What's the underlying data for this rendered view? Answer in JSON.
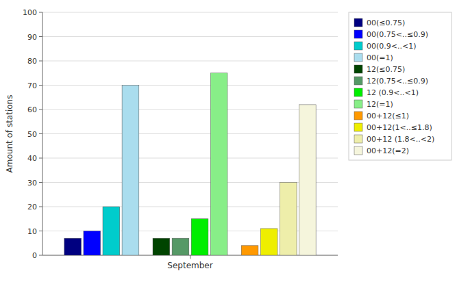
{
  "chart_data": {
    "type": "bar",
    "y_label": "Amount of stations",
    "categories": [
      "September"
    ],
    "series": [
      {
        "name": "00(≤0.75)",
        "color": "#000080",
        "values": [
          7
        ]
      },
      {
        "name": "00(0.75<..≤0.9)",
        "color": "#0000FF",
        "values": [
          10
        ]
      },
      {
        "name": "00(0.9<..<1)",
        "color": "#00CCCC",
        "values": [
          20
        ]
      },
      {
        "name": "00(=1)",
        "color": "#AADDEE",
        "values": [
          70
        ]
      },
      {
        "name": "12(≤0.75)",
        "color": "#004400",
        "values": [
          7
        ]
      },
      {
        "name": "12(0.75<..≤0.9)",
        "color": "#559966",
        "values": [
          7
        ]
      },
      {
        "name": "12 (0.9<..<1)",
        "color": "#00EE00",
        "values": [
          15
        ]
      },
      {
        "name": "12(=1)",
        "color": "#88EE88",
        "values": [
          75
        ]
      },
      {
        "name": "00+12(≤1)",
        "color": "#FF9900",
        "values": [
          4
        ]
      },
      {
        "name": "00+12(1<..≤1.8)",
        "color": "#EEEE00",
        "values": [
          11
        ]
      },
      {
        "name": "00+12 (1.8<..<2)",
        "color": "#EEEEAA",
        "values": [
          30
        ]
      },
      {
        "name": "00+12(=2)",
        "color": "#F5F5DC",
        "values": [
          62
        ]
      }
    ],
    "ylim": [
      0,
      100
    ],
    "yticks": [
      0,
      10,
      20,
      30,
      40,
      50,
      60,
      70,
      80,
      90,
      100
    ],
    "grid": true,
    "legend": "right"
  }
}
